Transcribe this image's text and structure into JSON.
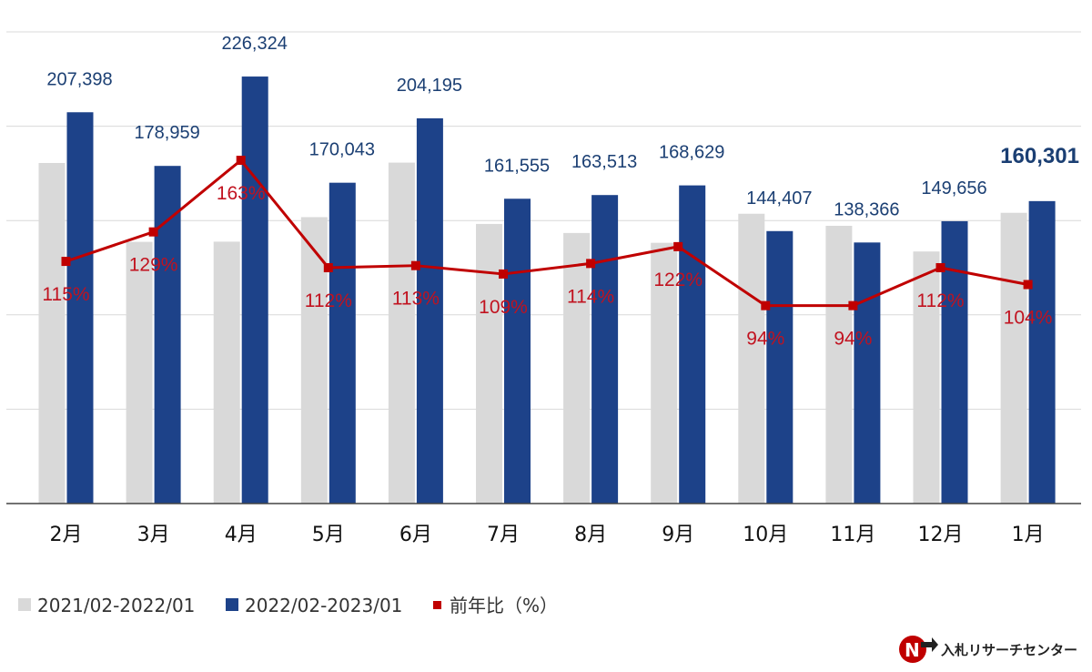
{
  "chart_data": {
    "type": "bar",
    "categories": [
      "2月",
      "3月",
      "4月",
      "5月",
      "6月",
      "7月",
      "8月",
      "9月",
      "10月",
      "11月",
      "12月",
      "1月"
    ],
    "series": [
      {
        "name": "2021/02-2022/01",
        "values": [
          180500,
          138700,
          138800,
          151800,
          180700,
          148200,
          143400,
          138200,
          153600,
          147200,
          133600,
          154100
        ],
        "color": "#d9d9d9"
      },
      {
        "name": "2022/02-2023/01",
        "values": [
          207398,
          178959,
          226324,
          170043,
          204195,
          161555,
          163513,
          168629,
          144407,
          138366,
          149656,
          160301
        ],
        "labels": [
          "207,398",
          "178,959",
          "226,324",
          "170,043",
          "204,195",
          "161,555",
          "163,513",
          "168,629",
          "144,407",
          "138,366",
          "149,656",
          "160,301"
        ],
        "color": "#1d4289"
      },
      {
        "name": "前年比（%）",
        "type": "line",
        "values": [
          115,
          129,
          163,
          112,
          113,
          109,
          114,
          122,
          94,
          94,
          112,
          104
        ],
        "labels": [
          "115%",
          "129%",
          "163%",
          "112%",
          "113%",
          "109%",
          "114%",
          "122%",
          "94%",
          "94%",
          "112%",
          "104%"
        ],
        "color": "#c00000"
      }
    ],
    "ylim": [
      0,
      250000
    ],
    "y2lim": [
      0,
      224
    ],
    "grid": true,
    "legend": "bottom-left"
  },
  "logo": {
    "text": "入札リサーチセンター",
    "icon": "n-arrow-logo"
  }
}
